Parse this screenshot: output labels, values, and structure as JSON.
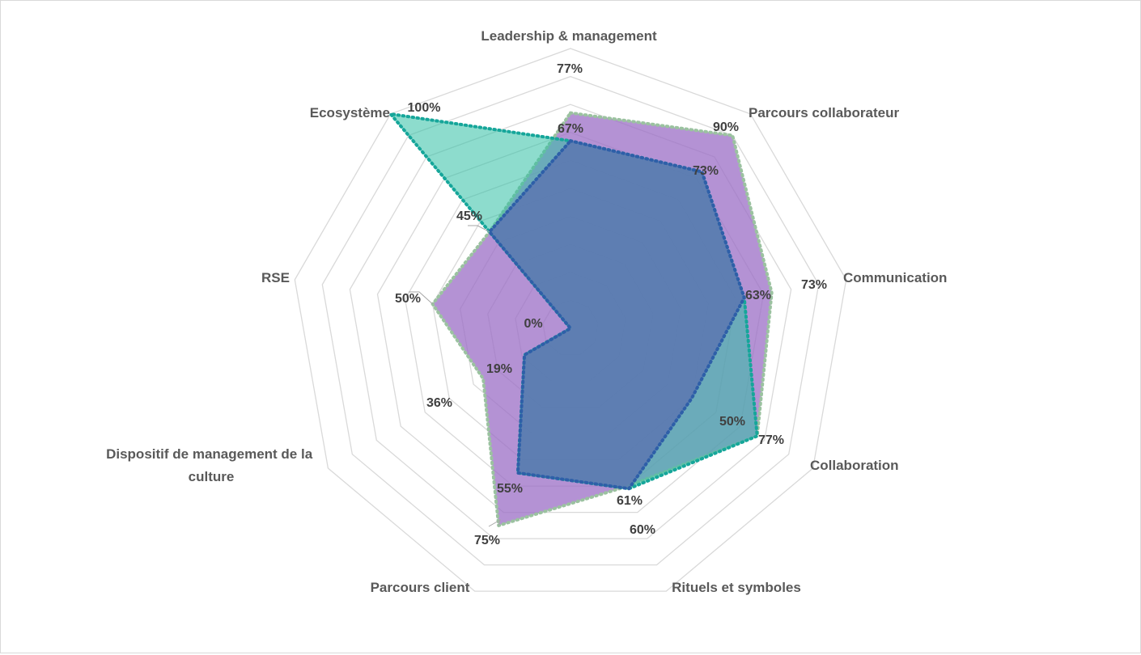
{
  "chart_data": {
    "type": "radar",
    "categories": [
      "Leadership & management",
      "Parcours collaborateur",
      "Communication",
      "Collaboration",
      "Rituels et symboles",
      "Parcours client",
      "Dispositif de management de la culture",
      "RSE",
      "Ecosystème"
    ],
    "series": [
      {
        "values": [
          77,
          90,
          73,
          77,
          60,
          75,
          36,
          50,
          45
        ],
        "fill": "#9b6dc6",
        "fill_opacity": 0.75,
        "stroke": "#9bc2a0",
        "dash": true
      },
      {
        "values": [
          67,
          73,
          63,
          77,
          61,
          55,
          19,
          0,
          100
        ],
        "fill": "#2fbfa4",
        "fill_opacity": 0.55,
        "stroke": "#16a69a",
        "dash": true
      },
      {
        "values": [
          67,
          73,
          63,
          50,
          61,
          55,
          19,
          0,
          45
        ],
        "fill": "#5b73b0",
        "fill_opacity": 0.8,
        "stroke": "#2e5fa8",
        "dash": true
      }
    ],
    "value_labels": [
      "77%",
      "67%",
      "90%",
      "73%",
      "73%",
      "63%",
      "77%",
      "50%",
      "60%",
      "61%",
      "75%",
      "55%",
      "36%",
      "19%",
      "50%",
      "0%",
      "100%",
      "45%"
    ],
    "rmax": 100,
    "grid_rings": 10,
    "legend": "none"
  }
}
